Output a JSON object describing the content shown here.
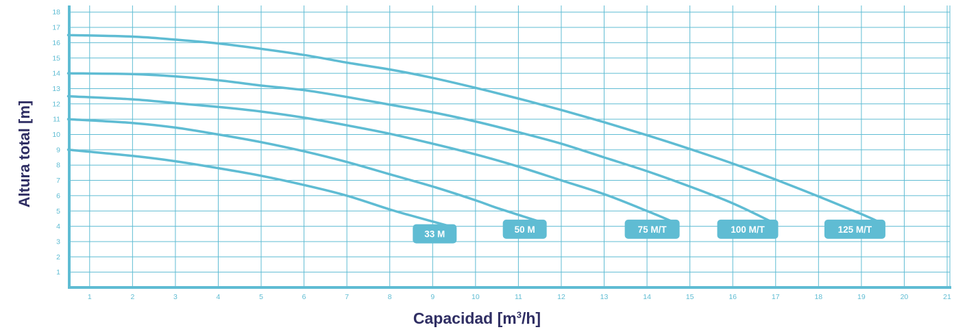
{
  "chart_data": {
    "type": "line",
    "xlabel": "Capacidad [m³/h]",
    "xlabel_main": "Capacidad ",
    "xlabel_unit_pre": "[m",
    "xlabel_unit_sup": "3",
    "xlabel_unit_post": "/h]",
    "ylabel": "Altura total [m]",
    "xlim": [
      0.5,
      21
    ],
    "ylim": [
      0,
      18
    ],
    "x_ticks": [
      1,
      2,
      3,
      4,
      5,
      6,
      7,
      8,
      9,
      10,
      11,
      12,
      13,
      14,
      15,
      16,
      17,
      18,
      19,
      20,
      21
    ],
    "y_ticks": [
      1,
      2,
      3,
      4,
      5,
      6,
      7,
      8,
      9,
      10,
      11,
      12,
      13,
      14,
      15,
      16,
      17,
      18
    ],
    "grid": true,
    "legend": "inline labels at end of each curve",
    "series": [
      {
        "name": "33 M",
        "x": [
          0.5,
          2,
          3,
          4,
          5,
          6,
          7,
          8,
          8.5,
          9.4
        ],
        "y": [
          9.0,
          8.6,
          8.25,
          7.8,
          7.3,
          6.7,
          6.0,
          5.1,
          4.7,
          4.0
        ]
      },
      {
        "name": "50 M",
        "x": [
          0.5,
          2,
          3,
          4,
          5,
          6,
          7,
          8,
          9,
          10,
          10.5,
          11.5
        ],
        "y": [
          11.0,
          10.75,
          10.45,
          10.0,
          9.5,
          8.9,
          8.2,
          7.4,
          6.6,
          5.7,
          5.2,
          4.3
        ]
      },
      {
        "name": "75 M/T",
        "x": [
          0.5,
          2,
          3,
          4,
          5,
          6,
          7,
          8,
          9,
          10,
          11,
          12,
          13,
          14,
          14.6
        ],
        "y": [
          12.5,
          12.3,
          12.05,
          11.8,
          11.5,
          11.1,
          10.6,
          10.05,
          9.4,
          8.7,
          7.9,
          7.0,
          6.1,
          5.0,
          4.3
        ]
      },
      {
        "name": "100 M/T",
        "x": [
          0.5,
          2,
          3,
          4,
          5,
          6,
          7,
          8,
          9,
          10,
          11,
          12,
          13,
          14,
          15,
          16,
          16.9
        ],
        "y": [
          14.0,
          13.95,
          13.8,
          13.55,
          13.2,
          12.9,
          12.45,
          11.95,
          11.45,
          10.85,
          10.15,
          9.4,
          8.5,
          7.6,
          6.6,
          5.5,
          4.3
        ]
      },
      {
        "name": "125 M/T",
        "x": [
          0.5,
          2,
          3,
          4,
          5,
          6,
          7,
          8,
          9,
          10,
          11,
          12,
          13,
          14,
          15,
          16,
          17,
          18,
          19,
          19.4
        ],
        "y": [
          16.5,
          16.4,
          16.2,
          15.95,
          15.6,
          15.2,
          14.7,
          14.25,
          13.7,
          13.05,
          12.35,
          11.6,
          10.8,
          9.95,
          9.05,
          8.1,
          7.05,
          5.95,
          4.8,
          4.3
        ]
      }
    ]
  },
  "colors": {
    "grid": "#5fbcd3",
    "axis": "#5fbcd3",
    "curve": "#5fbcd3",
    "badge_bg": "#5fbcd3",
    "badge_text": "#ffffff",
    "tick_text": "#5fbcd3",
    "title_text": "#2f2e63"
  }
}
